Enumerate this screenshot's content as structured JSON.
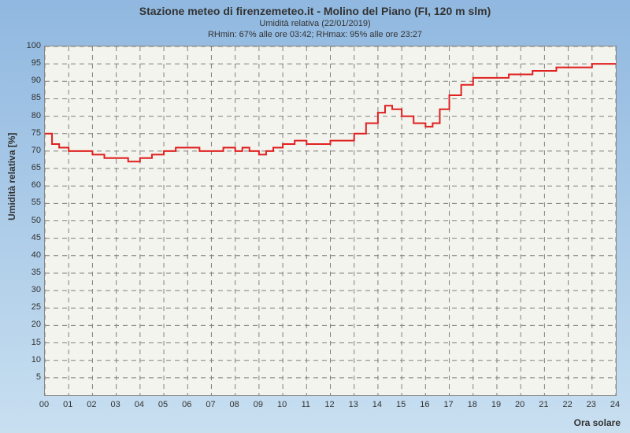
{
  "chart": {
    "type": "line",
    "title": "Stazione meteo di firenzemeteo.it - Molino del Piano (FI, 120 m slm)",
    "subtitle1": "Umidità relativa (22/01/2019)",
    "subtitle2": "RHmin: 67% alle ore 03:42; RHmax: 95% alle ore 23:27",
    "ylabel": "Umidità relativa [%]",
    "xlabel": "Ora solare",
    "background_gradient": [
      "#90b8e0",
      "#c8dff0"
    ],
    "plot_bg": "#f4f4ee",
    "grid_color": "#808080",
    "line_color": "#e02020",
    "line_width": 2,
    "xlim": [
      0,
      24
    ],
    "ylim": [
      0,
      100
    ],
    "xtick_step": 1,
    "ytick_step": 5,
    "xticks": [
      "00",
      "01",
      "02",
      "03",
      "04",
      "05",
      "06",
      "07",
      "08",
      "09",
      "10",
      "11",
      "12",
      "13",
      "14",
      "15",
      "16",
      "17",
      "18",
      "19",
      "20",
      "21",
      "22",
      "23",
      "24"
    ],
    "yticks": [
      5,
      10,
      15,
      20,
      25,
      30,
      35,
      40,
      45,
      50,
      55,
      60,
      65,
      70,
      75,
      80,
      85,
      90,
      95,
      100
    ],
    "series": [
      {
        "x": 0.0,
        "y": 75
      },
      {
        "x": 0.3,
        "y": 72
      },
      {
        "x": 0.6,
        "y": 71
      },
      {
        "x": 1.0,
        "y": 70
      },
      {
        "x": 1.5,
        "y": 70
      },
      {
        "x": 2.0,
        "y": 69
      },
      {
        "x": 2.5,
        "y": 68
      },
      {
        "x": 3.0,
        "y": 68
      },
      {
        "x": 3.5,
        "y": 67
      },
      {
        "x": 3.7,
        "y": 67
      },
      {
        "x": 4.0,
        "y": 68
      },
      {
        "x": 4.5,
        "y": 69
      },
      {
        "x": 5.0,
        "y": 70
      },
      {
        "x": 5.5,
        "y": 71
      },
      {
        "x": 6.0,
        "y": 71
      },
      {
        "x": 6.5,
        "y": 70
      },
      {
        "x": 7.0,
        "y": 70
      },
      {
        "x": 7.5,
        "y": 71
      },
      {
        "x": 8.0,
        "y": 70
      },
      {
        "x": 8.3,
        "y": 71
      },
      {
        "x": 8.6,
        "y": 70
      },
      {
        "x": 9.0,
        "y": 69
      },
      {
        "x": 9.3,
        "y": 70
      },
      {
        "x": 9.6,
        "y": 71
      },
      {
        "x": 10.0,
        "y": 72
      },
      {
        "x": 10.5,
        "y": 73
      },
      {
        "x": 11.0,
        "y": 72
      },
      {
        "x": 11.5,
        "y": 72
      },
      {
        "x": 12.0,
        "y": 73
      },
      {
        "x": 12.5,
        "y": 73
      },
      {
        "x": 13.0,
        "y": 75
      },
      {
        "x": 13.5,
        "y": 78
      },
      {
        "x": 14.0,
        "y": 81
      },
      {
        "x": 14.3,
        "y": 83
      },
      {
        "x": 14.6,
        "y": 82
      },
      {
        "x": 15.0,
        "y": 80
      },
      {
        "x": 15.5,
        "y": 78
      },
      {
        "x": 16.0,
        "y": 77
      },
      {
        "x": 16.3,
        "y": 78
      },
      {
        "x": 16.6,
        "y": 82
      },
      {
        "x": 17.0,
        "y": 86
      },
      {
        "x": 17.5,
        "y": 89
      },
      {
        "x": 18.0,
        "y": 91
      },
      {
        "x": 18.5,
        "y": 91
      },
      {
        "x": 19.0,
        "y": 91
      },
      {
        "x": 19.5,
        "y": 92
      },
      {
        "x": 20.0,
        "y": 92
      },
      {
        "x": 20.5,
        "y": 93
      },
      {
        "x": 21.0,
        "y": 93
      },
      {
        "x": 21.5,
        "y": 94
      },
      {
        "x": 22.0,
        "y": 94
      },
      {
        "x": 22.5,
        "y": 94
      },
      {
        "x": 23.0,
        "y": 95
      },
      {
        "x": 23.45,
        "y": 95
      },
      {
        "x": 24.0,
        "y": 95
      }
    ],
    "title_fontsize": 14,
    "subtitle_fontsize": 11,
    "tick_fontsize": 11,
    "label_fontsize": 12
  }
}
